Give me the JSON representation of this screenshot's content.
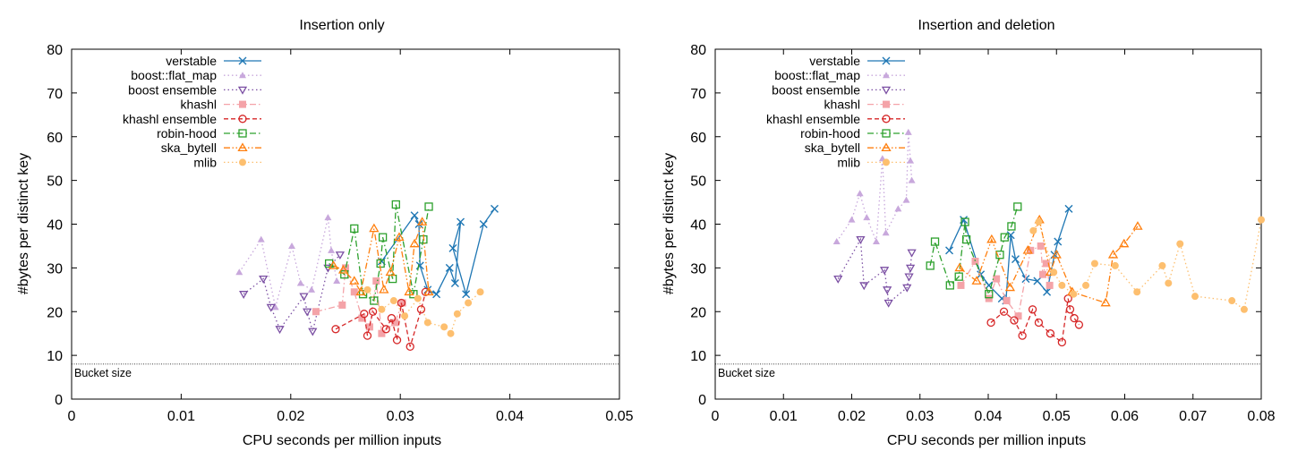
{
  "chart_data": [
    {
      "type": "line",
      "title": "Insertion only",
      "xlabel": "CPU seconds per million inputs",
      "ylabel": "#bytes per distinct key",
      "xlim": [
        0,
        0.05
      ],
      "ylim": [
        0,
        80
      ],
      "xticks": [
        "0",
        "0.01",
        "0.02",
        "0.03",
        "0.04",
        "0.05"
      ],
      "yticks": [
        "0",
        "10",
        "20",
        "30",
        "40",
        "50",
        "60",
        "70",
        "80"
      ],
      "legend_position": "top-left",
      "reference_line": {
        "y": 8,
        "label": "Bucket size"
      },
      "series": [
        {
          "name": "verstable",
          "color": "#1f77b4",
          "marker": "x",
          "dash": "solid",
          "x": [
            0.0283,
            0.0313,
            0.0317,
            0.0318,
            0.0325,
            0.0333,
            0.0345,
            0.035,
            0.0355,
            0.0348,
            0.036,
            0.0376,
            0.0386
          ],
          "y": [
            31.5,
            42,
            40,
            30.5,
            25,
            24,
            30,
            26.5,
            40.5,
            34.5,
            24,
            40,
            43.5
          ]
        },
        {
          "name": "boost::flat_map",
          "color": "#c8a8dc",
          "marker": "triangle-up",
          "dash": "dotted",
          "x": [
            0.0153,
            0.0173,
            0.0186,
            0.0201,
            0.0209,
            0.0219,
            0.0234,
            0.0237,
            0.0242
          ],
          "y": [
            29,
            36.5,
            21,
            35,
            26.5,
            25,
            41.5,
            34,
            27
          ]
        },
        {
          "name": "boost ensemble",
          "color": "#7b4fa3",
          "marker": "triangle-down",
          "dash": "dotted",
          "x": [
            0.0157,
            0.0175,
            0.0182,
            0.019,
            0.0212,
            0.0215,
            0.022,
            0.0234,
            0.0245
          ],
          "y": [
            24,
            27.5,
            21,
            16,
            23.5,
            20,
            15.5,
            30,
            33
          ]
        },
        {
          "name": "khashl",
          "color": "#f4a3a8",
          "marker": "square",
          "dash": "dashdot",
          "x": [
            0.0223,
            0.0247,
            0.025,
            0.0258,
            0.0265,
            0.0272,
            0.0278,
            0.0283,
            0.0295,
            0.0302
          ],
          "y": [
            20,
            21.5,
            30,
            24.5,
            18.5,
            16.5,
            27,
            15,
            17.5,
            22
          ]
        },
        {
          "name": "khashl ensemble",
          "color": "#d62728",
          "marker": "circle",
          "dash": "dashed",
          "x": [
            0.0241,
            0.0267,
            0.027,
            0.0275,
            0.0287,
            0.0292,
            0.0297,
            0.0301,
            0.0309,
            0.0319,
            0.0323
          ],
          "y": [
            16,
            19.5,
            14.5,
            20,
            16,
            18.5,
            13.5,
            22,
            12,
            20.5,
            24.5
          ]
        },
        {
          "name": "robin-hood",
          "color": "#2ca02c",
          "marker": "square-open",
          "dash": "dashdot",
          "x": [
            0.0235,
            0.0249,
            0.0258,
            0.0266,
            0.0276,
            0.0282,
            0.0284,
            0.0293,
            0.0296,
            0.0312,
            0.0321,
            0.0326
          ],
          "y": [
            31,
            28.5,
            39,
            24,
            22.5,
            31,
            37,
            27.5,
            44.5,
            24,
            36.5,
            44
          ]
        },
        {
          "name": "ska_bytell",
          "color": "#ff7f0e",
          "marker": "triangle-up-open",
          "dash": "dashdotdot",
          "x": [
            0.0239,
            0.0248,
            0.0258,
            0.0264,
            0.0276,
            0.0285,
            0.0291,
            0.0299,
            0.0308,
            0.0313,
            0.032,
            0.0326
          ],
          "y": [
            30.5,
            29.5,
            27,
            24.5,
            39,
            25,
            29,
            37,
            24.5,
            35.5,
            40.5,
            24.5
          ]
        },
        {
          "name": "mlib",
          "color": "#fdbf6f",
          "marker": "circle-filled",
          "dash": "dotted",
          "x": [
            0.027,
            0.0283,
            0.0294,
            0.0304,
            0.0316,
            0.0325,
            0.034,
            0.0346,
            0.0352,
            0.0362,
            0.0373
          ],
          "y": [
            25,
            20.5,
            22.5,
            19,
            23,
            17.5,
            16.5,
            15,
            19.5,
            22,
            24.5
          ]
        }
      ]
    },
    {
      "type": "line",
      "title": "Insertion and deletion",
      "xlabel": "CPU seconds per million inputs",
      "ylabel": "#bytes per distinct key",
      "xlim": [
        0,
        0.08
      ],
      "ylim": [
        0,
        80
      ],
      "xticks": [
        "0",
        "0.01",
        "0.02",
        "0.03",
        "0.04",
        "0.05",
        "0.06",
        "0.07",
        "0.08"
      ],
      "yticks": [
        "0",
        "10",
        "20",
        "30",
        "40",
        "50",
        "60",
        "70",
        "80"
      ],
      "legend_position": "top-left",
      "reference_line": {
        "y": 8,
        "label": "Bucket size"
      },
      "series": [
        {
          "name": "verstable",
          "color": "#1f77b4",
          "marker": "x",
          "dash": "solid",
          "x": [
            0.0343,
            0.0364,
            0.0389,
            0.0401,
            0.042,
            0.0426,
            0.0433,
            0.044,
            0.0455,
            0.0472,
            0.0486,
            0.0497,
            0.0502,
            0.0518
          ],
          "y": [
            34,
            41,
            28.5,
            26,
            23,
            22.5,
            37.5,
            32,
            27.5,
            27,
            24.5,
            33,
            36,
            43.5
          ]
        },
        {
          "name": "boost::flat_map",
          "color": "#c8a8dc",
          "marker": "triangle-up",
          "dash": "dotted",
          "x": [
            0.0178,
            0.02,
            0.0212,
            0.0222,
            0.0236,
            0.0245,
            0.025,
            0.0268,
            0.028,
            0.0283,
            0.0286,
            0.0288
          ],
          "y": [
            36,
            41,
            47,
            41.5,
            36,
            55,
            38,
            43.5,
            45.5,
            61,
            54.5,
            50
          ]
        },
        {
          "name": "boost ensemble",
          "color": "#7b4fa3",
          "marker": "triangle-down",
          "dash": "dotted",
          "x": [
            0.018,
            0.0213,
            0.0218,
            0.0248,
            0.0252,
            0.0254,
            0.0281,
            0.0284,
            0.0286,
            0.0288
          ],
          "y": [
            27.5,
            36.5,
            26,
            29.5,
            25,
            22,
            25.5,
            28,
            30,
            33.5
          ]
        },
        {
          "name": "khashl",
          "color": "#f4a3a8",
          "marker": "square",
          "dash": "dashdot",
          "x": [
            0.036,
            0.0381,
            0.0401,
            0.0412,
            0.0427,
            0.0444,
            0.0462,
            0.0477,
            0.048,
            0.0485,
            0.049
          ],
          "y": [
            26,
            31.5,
            23,
            27.5,
            22.5,
            19,
            34,
            35,
            28.5,
            31,
            26
          ]
        },
        {
          "name": "khashl ensemble",
          "color": "#d62728",
          "marker": "circle",
          "dash": "dashed",
          "x": [
            0.0404,
            0.0423,
            0.0438,
            0.045,
            0.0465,
            0.0474,
            0.0491,
            0.0508,
            0.0517,
            0.052,
            0.0526,
            0.0533
          ],
          "y": [
            17.5,
            20,
            18,
            14.5,
            20.5,
            17.5,
            15,
            13,
            23,
            20.5,
            18.5,
            17
          ]
        },
        {
          "name": "robin-hood",
          "color": "#2ca02c",
          "marker": "square-open",
          "dash": "dashdot",
          "x": [
            0.0315,
            0.0322,
            0.0344,
            0.0357,
            0.0366,
            0.0368,
            0.0401,
            0.0417,
            0.0424,
            0.0434,
            0.0443
          ],
          "y": [
            30.5,
            36,
            26,
            28,
            40.5,
            36.5,
            24,
            33,
            37,
            39.5,
            44
          ]
        },
        {
          "name": "ska_bytell",
          "color": "#ff7f0e",
          "marker": "triangle-up-open",
          "dash": "dashdotdot",
          "x": [
            0.0358,
            0.0383,
            0.0405,
            0.0432,
            0.0458,
            0.0475,
            0.0491,
            0.05,
            0.0523,
            0.0572,
            0.0583,
            0.0599,
            0.0619
          ],
          "y": [
            30,
            27,
            36.5,
            25.5,
            34,
            41,
            29,
            33,
            24.5,
            22,
            33,
            35.5,
            39.5
          ]
        },
        {
          "name": "mlib",
          "color": "#fdbf6f",
          "marker": "circle-filled",
          "dash": "dotted",
          "x": [
            0.0466,
            0.0474,
            0.0496,
            0.0508,
            0.0525,
            0.0543,
            0.0556,
            0.0586,
            0.0618,
            0.0655,
            0.0664,
            0.0681,
            0.0703,
            0.0757,
            0.0775,
            0.08
          ],
          "y": [
            38.5,
            40.5,
            29,
            26,
            24,
            26,
            31,
            30.5,
            24.5,
            30.5,
            26.5,
            35.5,
            23.5,
            22.5,
            20.5,
            41
          ]
        }
      ]
    }
  ]
}
